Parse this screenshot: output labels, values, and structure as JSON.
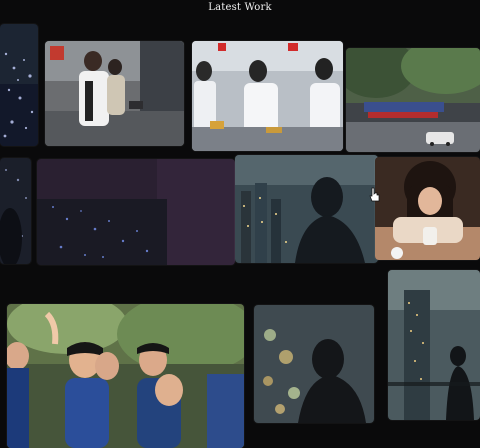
{
  "header": {
    "title": "Latest Work"
  },
  "gallery": {
    "items": [
      {
        "name": "tile-city-night-left"
      },
      {
        "name": "tile-street-students"
      },
      {
        "name": "tile-lab-workers"
      },
      {
        "name": "tile-street-car"
      },
      {
        "name": "tile-dark-left-edge"
      },
      {
        "name": "tile-night-lights-purple"
      },
      {
        "name": "tile-skyline-silhouette"
      },
      {
        "name": "tile-girl-tea"
      },
      {
        "name": "tile-group-selfie"
      },
      {
        "name": "tile-bokeh-silhouette"
      },
      {
        "name": "tile-tower-silhouette"
      }
    ]
  },
  "colors": {
    "background": "#0a0a0b",
    "title_text": "#f2f2f2"
  }
}
